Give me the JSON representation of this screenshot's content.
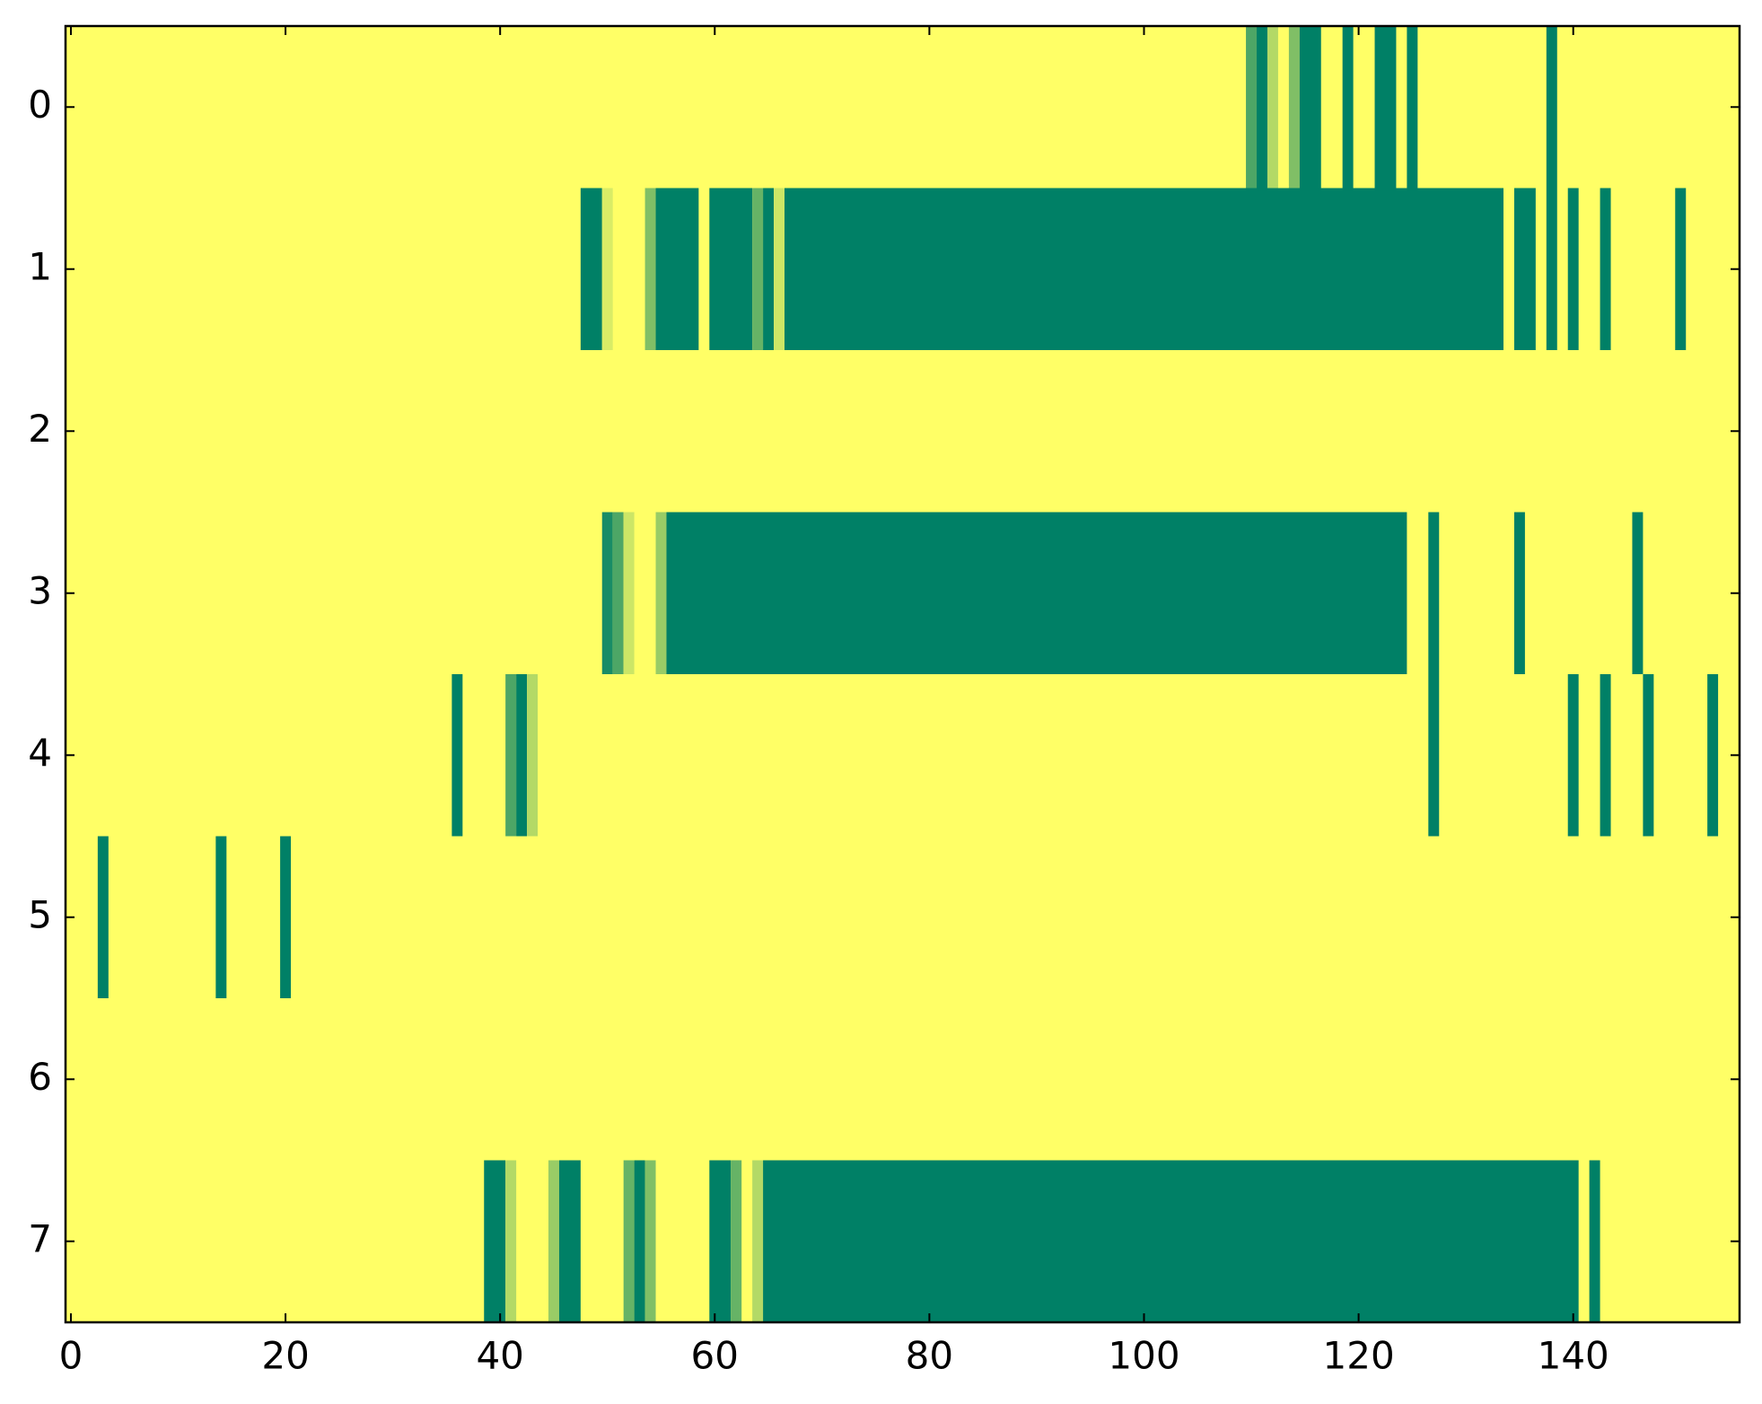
{
  "chart_data": {
    "type": "heatmap",
    "colormap": "summer_r",
    "clim": [
      0,
      1
    ],
    "xlim": [
      -0.5,
      155.5
    ],
    "ylim": [
      7.5,
      -0.5
    ],
    "xticks": [
      0,
      20,
      40,
      60,
      80,
      100,
      120,
      140
    ],
    "yticks": [
      0,
      1,
      2,
      3,
      4,
      5,
      6,
      7
    ],
    "rows": [
      {
        "row": 0,
        "segments": [
          [
            110,
            110,
            0.7
          ],
          [
            111,
            111,
            1
          ],
          [
            112,
            112,
            0.3
          ],
          [
            114,
            114,
            0.5
          ],
          [
            115,
            116,
            1
          ],
          [
            119,
            119,
            1
          ],
          [
            122,
            123,
            1
          ],
          [
            125,
            125,
            1
          ],
          [
            138,
            138,
            1
          ]
        ]
      },
      {
        "row": 1,
        "segments": [
          [
            48,
            49,
            1
          ],
          [
            50,
            50,
            0.15
          ],
          [
            54,
            54,
            0.5
          ],
          [
            55,
            58,
            1
          ],
          [
            60,
            63,
            1
          ],
          [
            64,
            64,
            0.6
          ],
          [
            65,
            65,
            1
          ],
          [
            66,
            66,
            0.2
          ],
          [
            67,
            133,
            1
          ],
          [
            135,
            136,
            1
          ],
          [
            138,
            138,
            1
          ],
          [
            140,
            140,
            1
          ],
          [
            143,
            143,
            1
          ],
          [
            150,
            150,
            1
          ]
        ]
      },
      {
        "row": 3,
        "segments": [
          [
            50,
            50,
            0.9
          ],
          [
            51,
            51,
            0.7
          ],
          [
            52,
            52,
            0.2
          ],
          [
            55,
            55,
            0.4
          ],
          [
            56,
            124,
            1
          ],
          [
            127,
            127,
            1
          ],
          [
            135,
            135,
            1
          ],
          [
            146,
            146,
            1
          ]
        ]
      },
      {
        "row": 4,
        "segments": [
          [
            36,
            36,
            1
          ],
          [
            41,
            41,
            0.7
          ],
          [
            42,
            42,
            1
          ],
          [
            43,
            43,
            0.3
          ],
          [
            127,
            127,
            1
          ],
          [
            140,
            140,
            1
          ],
          [
            143,
            143,
            1
          ],
          [
            147,
            147,
            1
          ],
          [
            153,
            153,
            1
          ]
        ]
      },
      {
        "row": 5,
        "segments": [
          [
            3,
            3,
            1
          ],
          [
            14,
            14,
            1
          ],
          [
            20,
            20,
            1
          ]
        ]
      },
      {
        "row": 7,
        "segments": [
          [
            39,
            40,
            1
          ],
          [
            41,
            41,
            0.3
          ],
          [
            45,
            45,
            0.4
          ],
          [
            46,
            47,
            1
          ],
          [
            52,
            52,
            0.6
          ],
          [
            53,
            53,
            1
          ],
          [
            54,
            54,
            0.5
          ],
          [
            60,
            61,
            1
          ],
          [
            62,
            62,
            0.6
          ],
          [
            64,
            64,
            0.3
          ],
          [
            65,
            140,
            1
          ],
          [
            142,
            142,
            1
          ]
        ]
      }
    ]
  }
}
